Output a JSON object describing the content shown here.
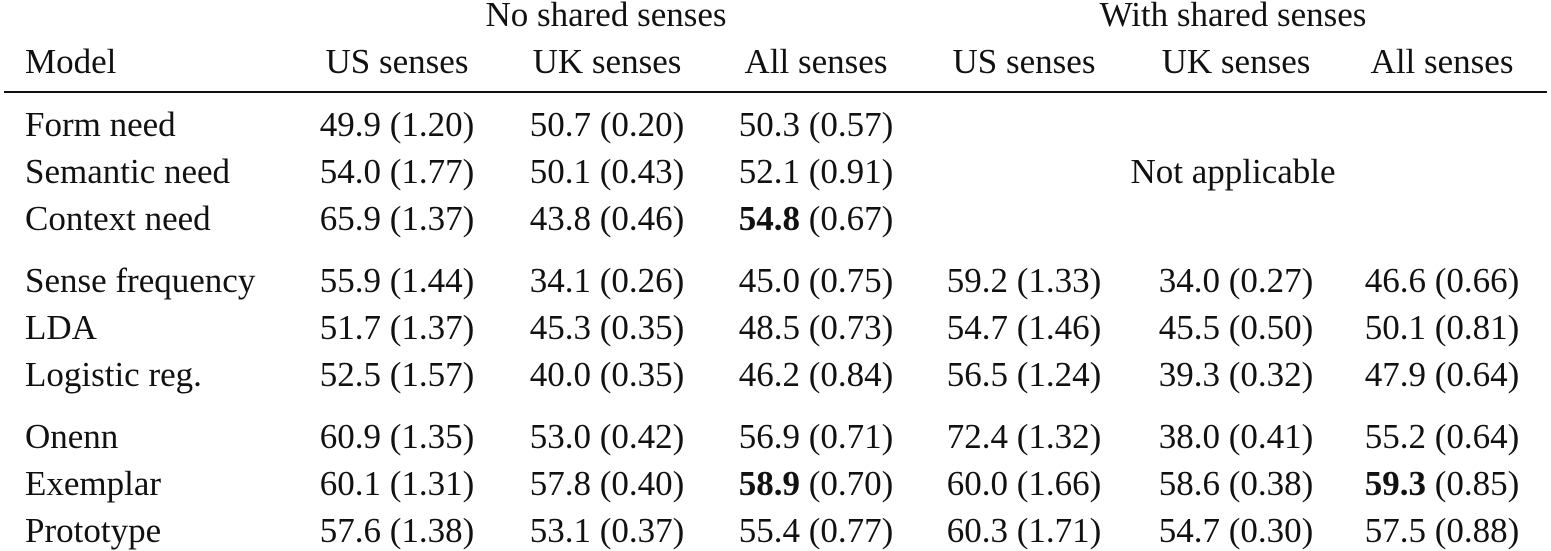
{
  "header": {
    "group_no_shared": "No shared senses",
    "group_with_shared": "With shared senses",
    "model": "Model",
    "columns": [
      "US senses",
      "UK senses",
      "All senses",
      "US senses",
      "UK senses",
      "All senses"
    ]
  },
  "not_applicable": "Not applicable",
  "rows": [
    {
      "model": "Form need",
      "cells": [
        {
          "val": "49.9",
          "sd": "(1.20)"
        },
        {
          "val": "50.7",
          "sd": "(0.20)"
        },
        {
          "val": "50.3",
          "sd": "(0.57)"
        }
      ]
    },
    {
      "model": "Semantic need",
      "cells": [
        {
          "val": "54.0",
          "sd": "(1.77)"
        },
        {
          "val": "50.1",
          "sd": "(0.43)"
        },
        {
          "val": "52.1",
          "sd": "(0.91)"
        }
      ]
    },
    {
      "model": "Context need",
      "cells": [
        {
          "val": "65.9",
          "sd": "(1.37)"
        },
        {
          "val": "43.8",
          "sd": "(0.46)"
        },
        {
          "val": "54.8",
          "sd": "(0.67)",
          "bold": true
        }
      ]
    },
    {
      "model": "Sense frequency",
      "cells": [
        {
          "val": "55.9",
          "sd": "(1.44)"
        },
        {
          "val": "34.1",
          "sd": "(0.26)"
        },
        {
          "val": "45.0",
          "sd": "(0.75)"
        },
        {
          "val": "59.2",
          "sd": "(1.33)"
        },
        {
          "val": "34.0",
          "sd": "(0.27)"
        },
        {
          "val": "46.6",
          "sd": "(0.66)"
        }
      ]
    },
    {
      "model": "LDA",
      "cells": [
        {
          "val": "51.7",
          "sd": "(1.37)"
        },
        {
          "val": "45.3",
          "sd": "(0.35)"
        },
        {
          "val": "48.5",
          "sd": "(0.73)"
        },
        {
          "val": "54.7",
          "sd": "(1.46)"
        },
        {
          "val": "45.5",
          "sd": "(0.50)"
        },
        {
          "val": "50.1",
          "sd": "(0.81)"
        }
      ]
    },
    {
      "model": "Logistic reg.",
      "cells": [
        {
          "val": "52.5",
          "sd": "(1.57)"
        },
        {
          "val": "40.0",
          "sd": "(0.35)"
        },
        {
          "val": "46.2",
          "sd": "(0.84)"
        },
        {
          "val": "56.5",
          "sd": "(1.24)"
        },
        {
          "val": "39.3",
          "sd": "(0.32)"
        },
        {
          "val": "47.9",
          "sd": "(0.64)"
        }
      ]
    },
    {
      "model": "Onenn",
      "cells": [
        {
          "val": "60.9",
          "sd": "(1.35)"
        },
        {
          "val": "53.0",
          "sd": "(0.42)"
        },
        {
          "val": "56.9",
          "sd": "(0.71)"
        },
        {
          "val": "72.4",
          "sd": "(1.32)"
        },
        {
          "val": "38.0",
          "sd": "(0.41)"
        },
        {
          "val": "55.2",
          "sd": "(0.64)"
        }
      ]
    },
    {
      "model": "Exemplar",
      "cells": [
        {
          "val": "60.1",
          "sd": "(1.31)"
        },
        {
          "val": "57.8",
          "sd": "(0.40)"
        },
        {
          "val": "58.9",
          "sd": "(0.70)",
          "bold": true
        },
        {
          "val": "60.0",
          "sd": "(1.66)"
        },
        {
          "val": "58.6",
          "sd": "(0.38)"
        },
        {
          "val": "59.3",
          "sd": "(0.85)",
          "bold": true
        }
      ]
    },
    {
      "model": "Prototype",
      "cells": [
        {
          "val": "57.6",
          "sd": "(1.38)"
        },
        {
          "val": "53.1",
          "sd": "(0.37)"
        },
        {
          "val": "55.4",
          "sd": "(0.77)"
        },
        {
          "val": "60.3",
          "sd": "(1.71)"
        },
        {
          "val": "54.7",
          "sd": "(0.30)"
        },
        {
          "val": "57.5",
          "sd": "(0.88)"
        }
      ]
    }
  ]
}
